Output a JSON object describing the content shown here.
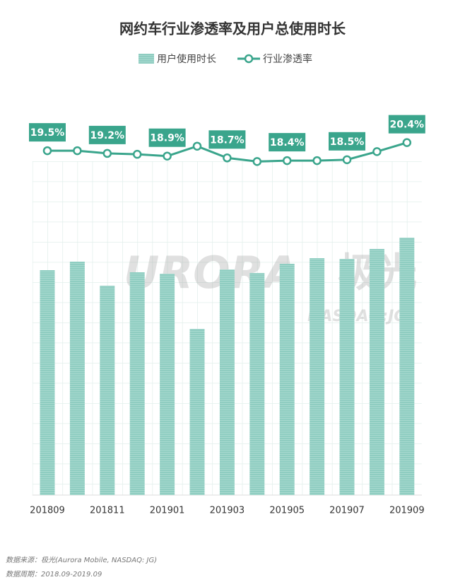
{
  "chart_data": {
    "type": "bar-line",
    "title": "网约车行业渗透率及用户总使用时长",
    "categories": [
      "201809",
      null,
      "201811",
      null,
      "201901",
      null,
      "201903",
      null,
      "201905",
      null,
      "201907",
      null,
      "201909"
    ],
    "series": [
      {
        "name": "用户使用时长",
        "type": "bar",
        "color": "#8fcdc1",
        "values": [
          318,
          330,
          296,
          315,
          313,
          235,
          319,
          314,
          327,
          335,
          334,
          348,
          364
        ]
      },
      {
        "name": "行业渗透率",
        "type": "line",
        "axis": "y2",
        "color": "#3aa58c",
        "values": [
          19.5,
          19.5,
          19.2,
          19.1,
          18.9,
          20.0,
          18.7,
          18.3,
          18.4,
          18.4,
          18.5,
          19.4,
          20.4
        ],
        "value_labels": [
          "19.5%",
          null,
          "19.2%",
          null,
          "18.9%",
          null,
          "18.7%",
          null,
          "18.4%",
          null,
          "18.5%",
          null,
          "20.4%"
        ]
      }
    ],
    "ylim": [
      0,
      400
    ],
    "y2lim": [
      10,
      21
    ],
    "grid": true,
    "watermark": [
      "URORA",
      "极光",
      "NASDAQ:JG"
    ],
    "notes": [
      "数据来源：极光(Aurora Mobile, NASDAQ: JG)",
      "数据周期：2018.09-2019.09"
    ]
  }
}
